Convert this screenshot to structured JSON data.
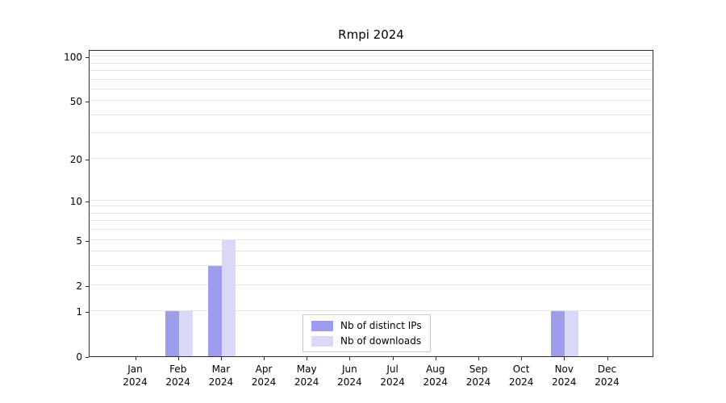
{
  "chart_data": {
    "type": "bar",
    "title": "Rmpi 2024",
    "categories": [
      "Jan",
      "Feb",
      "Mar",
      "Apr",
      "May",
      "Jun",
      "Jul",
      "Aug",
      "Sep",
      "Oct",
      "Nov",
      "Dec"
    ],
    "year": "2024",
    "series": [
      {
        "name": "Nb of distinct IPs",
        "color": "#9d9dee",
        "values": [
          0,
          1,
          3,
          0,
          0,
          0,
          0,
          0,
          0,
          0,
          1,
          0
        ]
      },
      {
        "name": "Nb of downloads",
        "color": "#dadaf8",
        "values": [
          0,
          1,
          5,
          0,
          0,
          0,
          0,
          0,
          0,
          0,
          1,
          0
        ]
      }
    ],
    "yscale": "log1p",
    "ylim": [
      0,
      112
    ],
    "ytick_values": [
      0,
      1,
      2,
      5,
      10,
      20,
      50,
      100
    ],
    "ytick_labels": [
      "0",
      "1",
      "2",
      "5",
      "10",
      "20",
      "50",
      "100"
    ],
    "minor_gridlines": [
      1,
      2,
      3,
      4,
      5,
      6,
      7,
      8,
      9,
      10,
      20,
      30,
      40,
      50,
      60,
      70,
      80,
      90,
      100
    ],
    "grid": true,
    "legend_position": "bottom-center"
  },
  "colors": {
    "background": "#ffffff",
    "axis": "#2e2e2e",
    "grid": "#e4e4e4"
  }
}
